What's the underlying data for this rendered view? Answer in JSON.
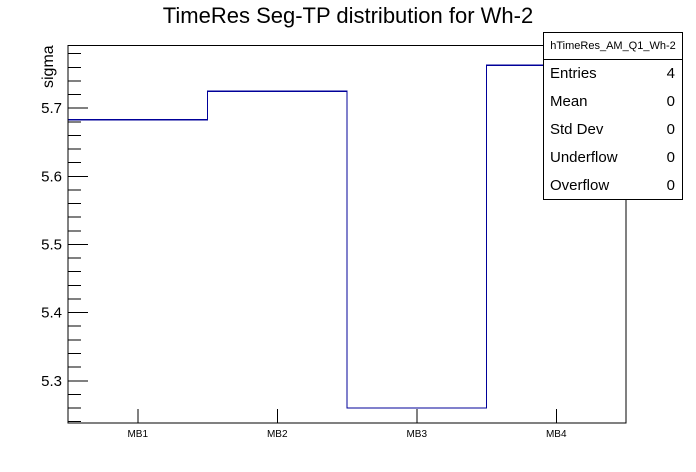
{
  "canvas": {
    "background": "#ffffff"
  },
  "chart_data": {
    "type": "line",
    "style": "root-histogram-step",
    "title": "TimeRes Seg-TP distribution for Wh-2",
    "ylabel": "sigma",
    "xlabel": "",
    "categories": [
      "MB1",
      "MB2",
      "MB3",
      "MB4"
    ],
    "values": [
      5.683,
      5.725,
      5.26,
      5.763
    ],
    "ylim": [
      5.238,
      5.792
    ],
    "yticks": [
      5.3,
      5.4,
      5.5,
      5.6,
      5.7
    ],
    "ytick_labels": [
      "5.3",
      "5.4",
      "5.5",
      "5.6",
      "5.7"
    ],
    "y_minor_step": 0.02,
    "grid": false,
    "legend": "none",
    "line_color": "#000099",
    "frame_color": "#000000",
    "text_color": "#000000"
  },
  "stats_box": {
    "title": "hTimeRes_AM_Q1_Wh-2",
    "rows": [
      {
        "label": "Entries",
        "value": "4"
      },
      {
        "label": "Mean",
        "value": "0"
      },
      {
        "label": "Std Dev",
        "value": "0"
      },
      {
        "label": "Underflow",
        "value": "0"
      },
      {
        "label": "Overflow",
        "value": "0"
      }
    ]
  }
}
